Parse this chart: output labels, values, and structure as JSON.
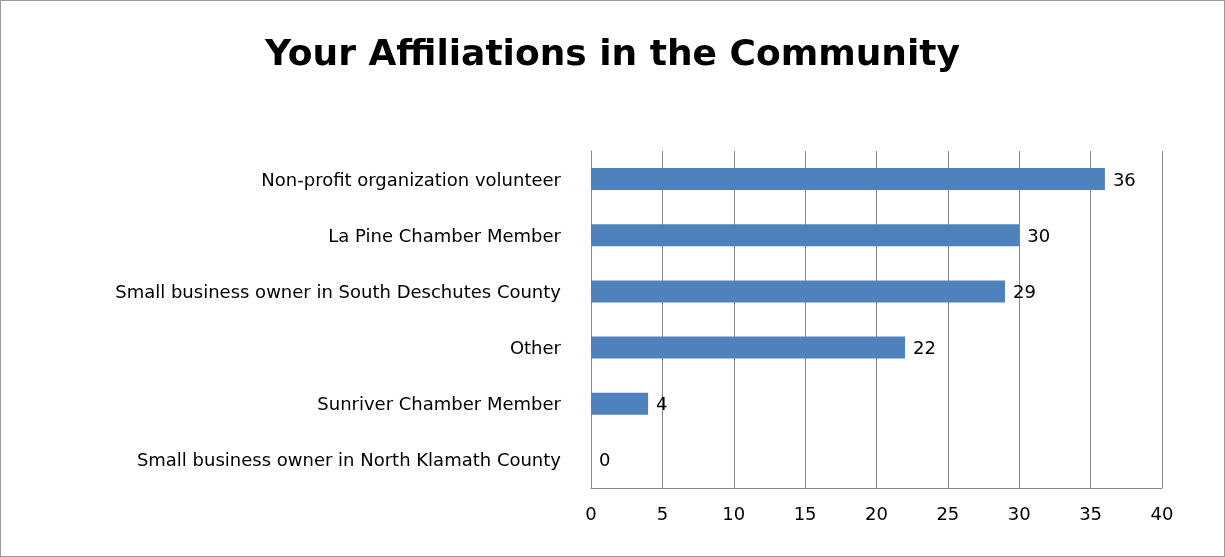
{
  "chart_data": {
    "type": "bar",
    "title": "Your Affiliations in the Community",
    "orientation": "horizontal",
    "categories": [
      "Non-profit organization volunteer",
      "La Pine Chamber Member",
      "Small business owner in South Deschutes County",
      "Other",
      "Sunriver Chamber Member",
      "Small business owner in North Klamath County"
    ],
    "values": [
      36,
      30,
      29,
      22,
      4,
      0
    ],
    "color": "#4f81bd",
    "xlim": [
      0,
      40
    ],
    "xticks": [
      0,
      5,
      10,
      15,
      20,
      25,
      30,
      35,
      40
    ],
    "grid": "x",
    "data_labels": true
  }
}
